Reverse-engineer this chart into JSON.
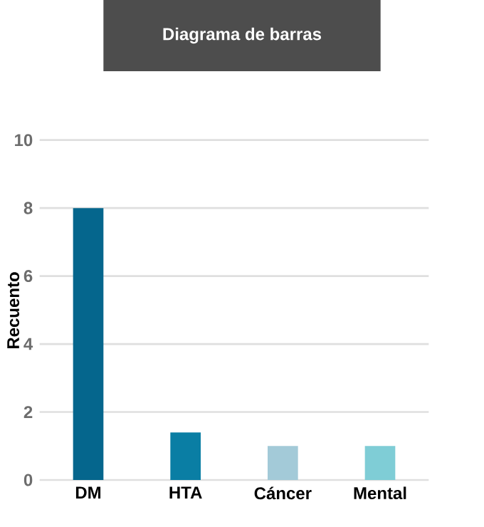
{
  "chart_data": {
    "type": "bar",
    "title": "Diagrama de barras",
    "ylabel": "Recuento",
    "categories": [
      "DM",
      "HTA",
      "Cáncer",
      "Mental"
    ],
    "values": [
      8,
      1.4,
      1,
      1
    ],
    "colors": [
      "#05668d",
      "#0a7ea4",
      "#a3cad8",
      "#7fcdd6"
    ],
    "ylim": [
      0,
      10
    ],
    "yticks": [
      0,
      2,
      4,
      6,
      8,
      10
    ],
    "grid": "y"
  }
}
